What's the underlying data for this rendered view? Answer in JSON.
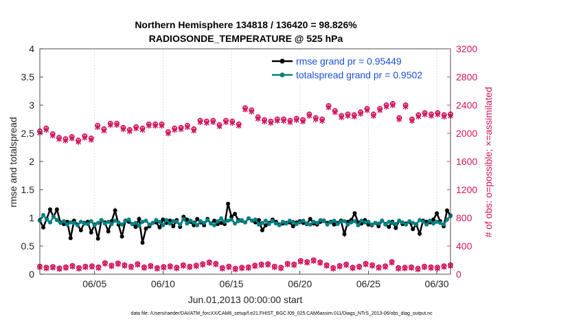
{
  "chart_data": {
    "type": "line",
    "title": "Northern Hemisphere 134818 / 136420 = 98.826%",
    "subtitle": "RADIOSONDE_TEMPERATURE @ 525 hPa",
    "xlabel": "Jun.01,2013 00:00:00 start",
    "ylabel": "rmse and totalspread",
    "ylabel_right": "# of obs: o=possible; ×=assimilated",
    "xlim": [
      0,
      30
    ],
    "ylim": [
      0,
      4
    ],
    "ylim_right": [
      0,
      3200
    ],
    "x_ticks": [
      {
        "value": 4,
        "label": "06/05"
      },
      {
        "value": 9,
        "label": "06/10"
      },
      {
        "value": 14,
        "label": "06/15"
      },
      {
        "value": 19,
        "label": "06/20"
      },
      {
        "value": 24,
        "label": "06/25"
      },
      {
        "value": 29,
        "label": "06/30"
      }
    ],
    "y_ticks": [
      "0",
      "0.5",
      "1",
      "1.5",
      "2",
      "2.5",
      "3",
      "3.5",
      "4"
    ],
    "y_ticks_right": [
      "0",
      "400",
      "800",
      "1200",
      "1600",
      "2000",
      "2400",
      "2800",
      "3200"
    ],
    "legend": [
      {
        "label": "rmse grand pr = 0.95449",
        "color": "#000000"
      },
      {
        "label": "totalspread grand pr = 0.9502",
        "color": "#008080"
      }
    ],
    "series": [
      {
        "name": "rmse",
        "color": "#000000",
        "values": [
          0.96,
          0.83,
          0.98,
          1.15,
          1.02,
          1.15,
          0.92,
          0.89,
          0.93,
          0.64,
          0.95,
          0.88,
          0.78,
          0.91,
          0.93,
          0.74,
          0.88,
          0.63,
          0.96,
          0.92,
          0.76,
          0.94,
          1.13,
          0.88,
          0.67,
          0.95,
          0.93,
          0.89,
          0.84,
          0.98,
          0.56,
          0.81,
          0.85,
          0.91,
          0.92,
          0.83,
          0.97,
          0.91,
          0.95,
          0.85,
          0.96,
          0.84,
          1.02,
          0.97,
          0.93,
          0.87,
          0.98,
          0.92,
          0.87,
          0.98,
          0.9,
          0.95,
          0.89,
          0.91,
          0.89,
          1.25,
          1.02,
          1.07,
          0.96,
          0.95,
          0.92,
          0.99,
          0.95,
          0.92,
          0.96,
          0.78,
          0.87,
          0.91,
          0.97,
          0.93,
          0.88,
          0.9,
          0.91,
          0.92,
          0.85,
          0.92,
          0.94,
          0.91,
          0.89,
          0.98,
          0.9,
          0.88,
          0.93,
          0.95,
          0.91,
          0.93,
          0.88,
          0.91,
          0.95,
          0.71,
          0.93,
          0.96,
          1.08,
          0.92,
          0.9,
          0.96,
          0.88,
          0.87,
          0.91,
          0.85,
          0.95,
          0.89,
          0.84,
          0.93,
          0.82,
          0.95,
          0.89,
          0.9,
          0.93,
          0.8,
          0.88,
          0.72,
          0.95,
          0.93,
          0.92,
          0.97,
          1.08,
          0.94,
          0.85,
          1.13,
          1.04
        ]
      },
      {
        "name": "totalspread",
        "color": "#008080",
        "values": [
          0.95,
          1.05,
          0.97,
          0.92,
          1.02,
          0.96,
          0.91,
          0.94,
          0.88,
          0.92,
          0.91,
          0.87,
          0.93,
          0.9,
          0.89,
          0.94,
          0.87,
          0.91,
          0.96,
          0.9,
          0.93,
          0.89,
          0.95,
          0.92,
          0.88,
          0.94,
          0.97,
          0.89,
          0.91,
          0.86,
          0.93,
          0.95,
          0.88,
          0.91,
          0.96,
          0.93,
          0.87,
          0.96,
          0.9,
          0.94,
          0.93,
          0.88,
          0.98,
          0.9,
          0.95,
          0.92,
          0.87,
          0.94,
          0.91,
          0.96,
          0.9,
          0.87,
          0.94,
          0.99,
          0.93,
          0.95,
          0.97,
          0.9,
          0.94,
          0.96,
          0.92,
          0.99,
          0.95,
          0.97,
          0.88,
          0.91,
          0.95,
          0.89,
          0.94,
          0.9,
          0.87,
          0.93,
          0.9,
          0.95,
          0.93,
          0.89,
          0.92,
          0.95,
          0.9,
          0.88,
          0.93,
          0.91,
          0.96,
          0.94,
          0.88,
          0.92,
          0.95,
          0.89,
          0.93,
          0.94,
          0.88,
          0.92,
          0.94,
          0.87,
          0.95,
          0.92,
          0.93,
          0.88,
          0.91,
          0.9,
          0.95,
          0.88,
          0.93,
          0.91,
          0.89,
          0.95,
          0.92,
          0.88,
          0.94,
          0.91,
          0.89,
          0.96,
          0.93,
          0.88,
          0.95,
          0.9,
          0.93,
          0.91,
          0.88,
          0.97,
          1.03
        ]
      },
      {
        "name": "obs_possible",
        "color": "#d0135c",
        "axis": "right",
        "values": [
          2030,
          2070,
          1990,
          1940,
          1920,
          1950,
          1900,
          1960,
          1930,
          2110,
          2060,
          2140,
          2140,
          2080,
          2050,
          2090,
          2070,
          2130,
          2130,
          2130,
          2020,
          2070,
          2080,
          2110,
          2060,
          2180,
          2170,
          2180,
          2120,
          2180,
          2170,
          2130,
          2360,
          2330,
          2230,
          2190,
          2170,
          2200,
          2200,
          2180,
          2210,
          2190,
          2270,
          2220,
          2200,
          2390,
          2320,
          2250,
          2270,
          2260,
          2300,
          2350,
          2270,
          2350,
          2400,
          2420,
          2220,
          2400,
          2200,
          2260,
          2290,
          2270,
          2290,
          2260,
          2270
        ]
      },
      {
        "name": "obs_assimilated",
        "color": "#d0135c",
        "axis": "right",
        "values": [
          2010,
          2050,
          1970,
          1920,
          1900,
          1930,
          1880,
          1940,
          1910,
          2090,
          2040,
          2120,
          2120,
          2060,
          2030,
          2070,
          2050,
          2110,
          2110,
          2110,
          2000,
          2050,
          2060,
          2090,
          2040,
          2160,
          2150,
          2160,
          2100,
          2160,
          2150,
          2110,
          2340,
          2310,
          2210,
          2170,
          2150,
          2180,
          2180,
          2160,
          2190,
          2170,
          2250,
          2200,
          2180,
          2370,
          2300,
          2230,
          2250,
          2240,
          2280,
          2330,
          2250,
          2330,
          2380,
          2400,
          2200,
          2380,
          2180,
          2240,
          2270,
          2250,
          2270,
          2240,
          2250
        ]
      },
      {
        "name": "obs_low_possible",
        "color": "#d0135c",
        "axis": "right",
        "values": [
          110,
          95,
          105,
          85,
          100,
          120,
          90,
          110,
          115,
          100,
          160,
          125,
          155,
          130,
          110,
          145,
          100,
          120,
          90,
          105,
          115,
          95,
          130,
          110,
          125,
          145,
          170,
          150,
          90,
          110,
          80,
          95,
          100,
          125,
          140,
          145,
          110,
          95,
          150,
          140,
          190,
          175,
          200,
          170,
          130,
          90,
          120,
          140,
          95,
          110,
          150,
          130,
          100,
          115,
          175,
          90,
          95,
          100,
          80,
          110,
          100,
          95,
          115,
          130
        ]
      },
      {
        "name": "obs_low_assimilated",
        "color": "#d0135c",
        "axis": "right",
        "values": [
          100,
          85,
          95,
          75,
          90,
          110,
          80,
          100,
          105,
          90,
          150,
          115,
          145,
          120,
          100,
          135,
          90,
          110,
          80,
          95,
          105,
          85,
          120,
          100,
          115,
          135,
          160,
          140,
          80,
          100,
          70,
          85,
          90,
          115,
          130,
          135,
          100,
          85,
          140,
          130,
          180,
          165,
          190,
          160,
          120,
          80,
          110,
          130,
          85,
          100,
          140,
          120,
          90,
          105,
          165,
          80,
          85,
          90,
          70,
          100,
          90,
          85,
          105,
          120
        ]
      }
    ]
  },
  "footer": "data file: /Users/raeder/DAI/ATM_forcXX/CAM6_setup/f.e21.FHIST_BGC.f09_025.CAM6assim.011/Diags_NTrS_2013-06/obs_diag_output.nc"
}
